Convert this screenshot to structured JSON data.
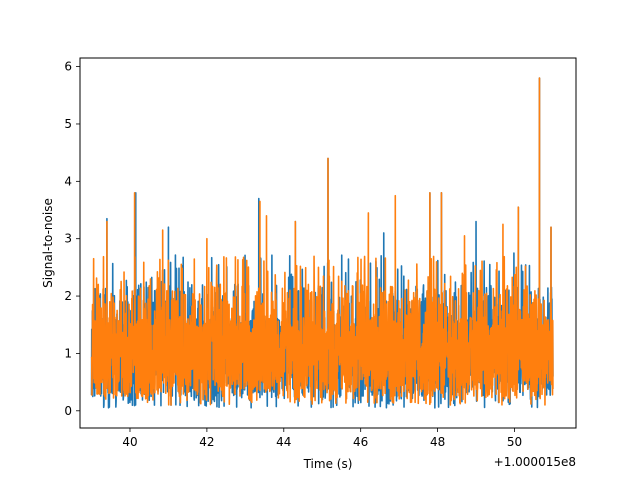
{
  "chart_data": {
    "type": "line",
    "title": "",
    "xlabel": "Time (s)",
    "ylabel": "Signal-to-noise",
    "x_offset_label": "+1.000015e8",
    "xlim": [
      38.7,
      51.6
    ],
    "ylim": [
      -0.3,
      6.15
    ],
    "x_ticks": [
      40,
      42,
      44,
      46,
      48,
      50
    ],
    "x_tick_labels": [
      "40",
      "42",
      "44",
      "46",
      "48",
      "50"
    ],
    "y_ticks": [
      0,
      1,
      2,
      3,
      4,
      5,
      6
    ],
    "y_tick_labels": [
      "0",
      "1",
      "2",
      "3",
      "4",
      "5",
      "6"
    ],
    "x_range": [
      39.0,
      51.0
    ],
    "grid": false,
    "series": [
      {
        "color": "#1f77b4",
        "baseline_band": [
          0.05,
          2.75
        ],
        "peaks": [
          {
            "x": 40.15,
            "y": 3.8
          },
          {
            "x": 39.4,
            "y": 3.35
          },
          {
            "x": 41.0,
            "y": 3.2
          },
          {
            "x": 43.35,
            "y": 3.7
          },
          {
            "x": 44.3,
            "y": 3.3
          },
          {
            "x": 45.15,
            "y": 4.4
          },
          {
            "x": 46.6,
            "y": 3.1
          },
          {
            "x": 47.8,
            "y": 3.8
          },
          {
            "x": 48.1,
            "y": 3.8
          },
          {
            "x": 49.0,
            "y": 3.3
          },
          {
            "x": 50.1,
            "y": 3.55
          },
          {
            "x": 50.65,
            "y": 5.8
          },
          {
            "x": 50.95,
            "y": 3.2
          }
        ]
      },
      {
        "color": "#ff7f0e",
        "baseline_band": [
          0.1,
          2.7
        ],
        "peaks": [
          {
            "x": 40.12,
            "y": 3.8
          },
          {
            "x": 39.4,
            "y": 3.3
          },
          {
            "x": 40.85,
            "y": 3.15
          },
          {
            "x": 42.0,
            "y": 3.0
          },
          {
            "x": 43.38,
            "y": 3.65
          },
          {
            "x": 43.55,
            "y": 3.4
          },
          {
            "x": 44.3,
            "y": 3.3
          },
          {
            "x": 45.15,
            "y": 4.4
          },
          {
            "x": 46.2,
            "y": 3.45
          },
          {
            "x": 46.9,
            "y": 3.75
          },
          {
            "x": 47.8,
            "y": 3.8
          },
          {
            "x": 48.1,
            "y": 3.8
          },
          {
            "x": 48.7,
            "y": 3.05
          },
          {
            "x": 49.7,
            "y": 3.25
          },
          {
            "x": 50.1,
            "y": 3.55
          },
          {
            "x": 50.65,
            "y": 5.8
          },
          {
            "x": 50.95,
            "y": 3.2
          }
        ]
      }
    ]
  }
}
